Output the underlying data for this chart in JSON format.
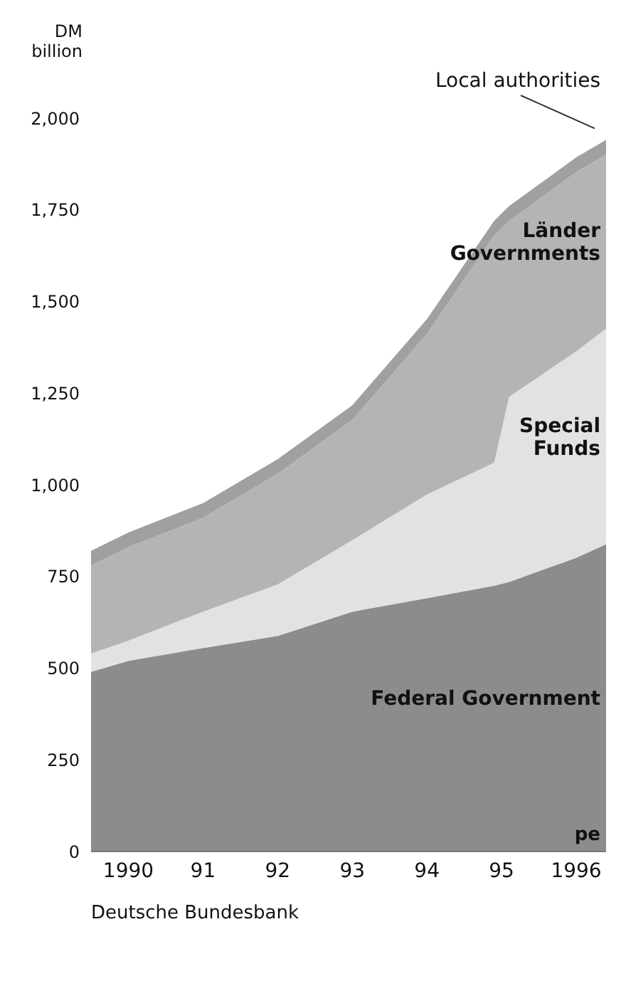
{
  "chart_data": {
    "type": "area",
    "stacked": true,
    "ylabel": "DM billion",
    "x": [
      1989.5,
      1990,
      1991,
      1992,
      1993,
      1994,
      1994.9,
      1995.1,
      1996,
      1996.4
    ],
    "xlim": [
      1989.5,
      1996.4
    ],
    "xticks": [
      {
        "value": 1990,
        "label": "1990"
      },
      {
        "value": 1991,
        "label": "91"
      },
      {
        "value": 1992,
        "label": "92"
      },
      {
        "value": 1993,
        "label": "93"
      },
      {
        "value": 1994,
        "label": "94"
      },
      {
        "value": 1995,
        "label": "95"
      },
      {
        "value": 1996,
        "label": "1996"
      }
    ],
    "ylim": [
      0,
      2000
    ],
    "yticks": [
      0,
      250,
      500,
      750,
      {
        "value": 1000,
        "label": "1,000"
      },
      {
        "value": 1250,
        "label": "1,250"
      },
      {
        "value": 1500,
        "label": "1,500"
      },
      {
        "value": 1750,
        "label": "1,750"
      },
      {
        "value": 2000,
        "label": "2,000"
      }
    ],
    "series": [
      {
        "name": "Federal Government",
        "color": "#8c8c8c",
        "values": [
          490,
          520,
          555,
          588,
          654,
          691,
          725,
          735,
          801,
          838
        ]
      },
      {
        "name": "Special Funds",
        "color": "#e2e2e2",
        "values": [
          50,
          55,
          99,
          140,
          195,
          283,
          335,
          505,
          563,
          588
        ]
      },
      {
        "name": "Länder Governments",
        "color": "#b4b4b4",
        "values": [
          240,
          255,
          256,
          302,
          328,
          438,
          620,
          480,
          489,
          475
        ]
      },
      {
        "name": "Local authorities",
        "color": "#a0a0a0",
        "values": [
          40,
          40,
          40,
          40,
          40,
          40,
          40,
          40,
          40,
          40
        ]
      }
    ],
    "grid": false,
    "legend": false,
    "annotations": [
      "pe",
      "Deutsche Bundesbank"
    ]
  }
}
